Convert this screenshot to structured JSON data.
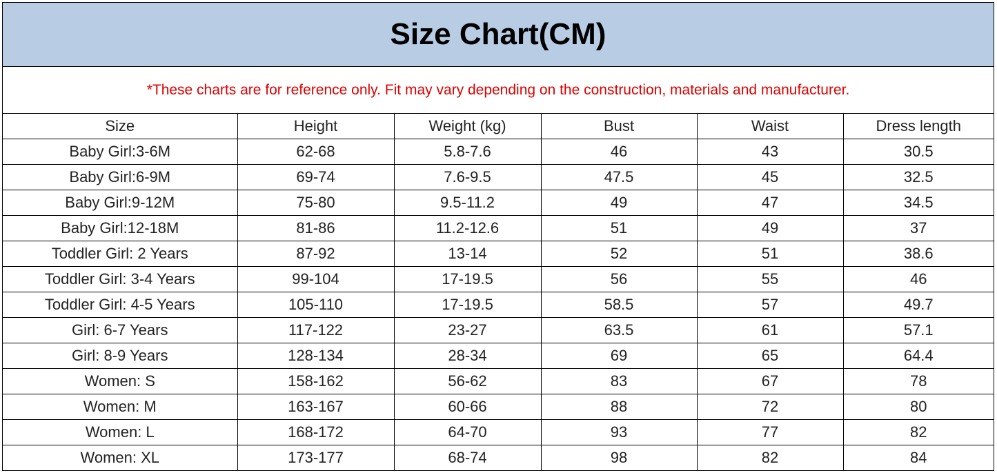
{
  "header": {
    "title": "Size Chart(CM)",
    "note": "*These charts are for reference only. Fit may vary depending on the construction, materials and manufacturer."
  },
  "table": {
    "columns": [
      "Size",
      "Height",
      "Weight (kg)",
      "Bust",
      "Waist",
      "Dress length"
    ],
    "rows": [
      [
        "Baby Girl:3-6M",
        "62-68",
        "5.8-7.6",
        46,
        43,
        30.5
      ],
      [
        "Baby Girl:6-9M",
        "69-74",
        "7.6-9.5",
        47.5,
        45,
        32.5
      ],
      [
        "Baby Girl:9-12M",
        "75-80",
        "9.5-11.2",
        49,
        47,
        34.5
      ],
      [
        "Baby Girl:12-18M",
        "81-86",
        "11.2-12.6",
        51,
        49,
        37
      ],
      [
        "Toddler Girl: 2 Years",
        "87-92",
        "13-14",
        52,
        51,
        38.6
      ],
      [
        "Toddler Girl: 3-4 Years",
        "99-104",
        "17-19.5",
        56,
        55,
        46
      ],
      [
        "Toddler Girl: 4-5 Years",
        "105-110",
        "17-19.5",
        58.5,
        57,
        49.7
      ],
      [
        "Girl: 6-7 Years",
        "117-122",
        "23-27",
        63.5,
        61,
        57.1
      ],
      [
        "Girl: 8-9 Years",
        "128-134",
        "28-34",
        69,
        65,
        64.4
      ],
      [
        "Women: S",
        "158-162",
        "56-62",
        83,
        67,
        78
      ],
      [
        "Women: M",
        "163-167",
        "60-66",
        88,
        72,
        80
      ],
      [
        "Women: L",
        "168-172",
        "64-70",
        93,
        77,
        82
      ],
      [
        "Women: XL",
        "173-177",
        "68-74",
        98,
        82,
        84
      ]
    ]
  }
}
